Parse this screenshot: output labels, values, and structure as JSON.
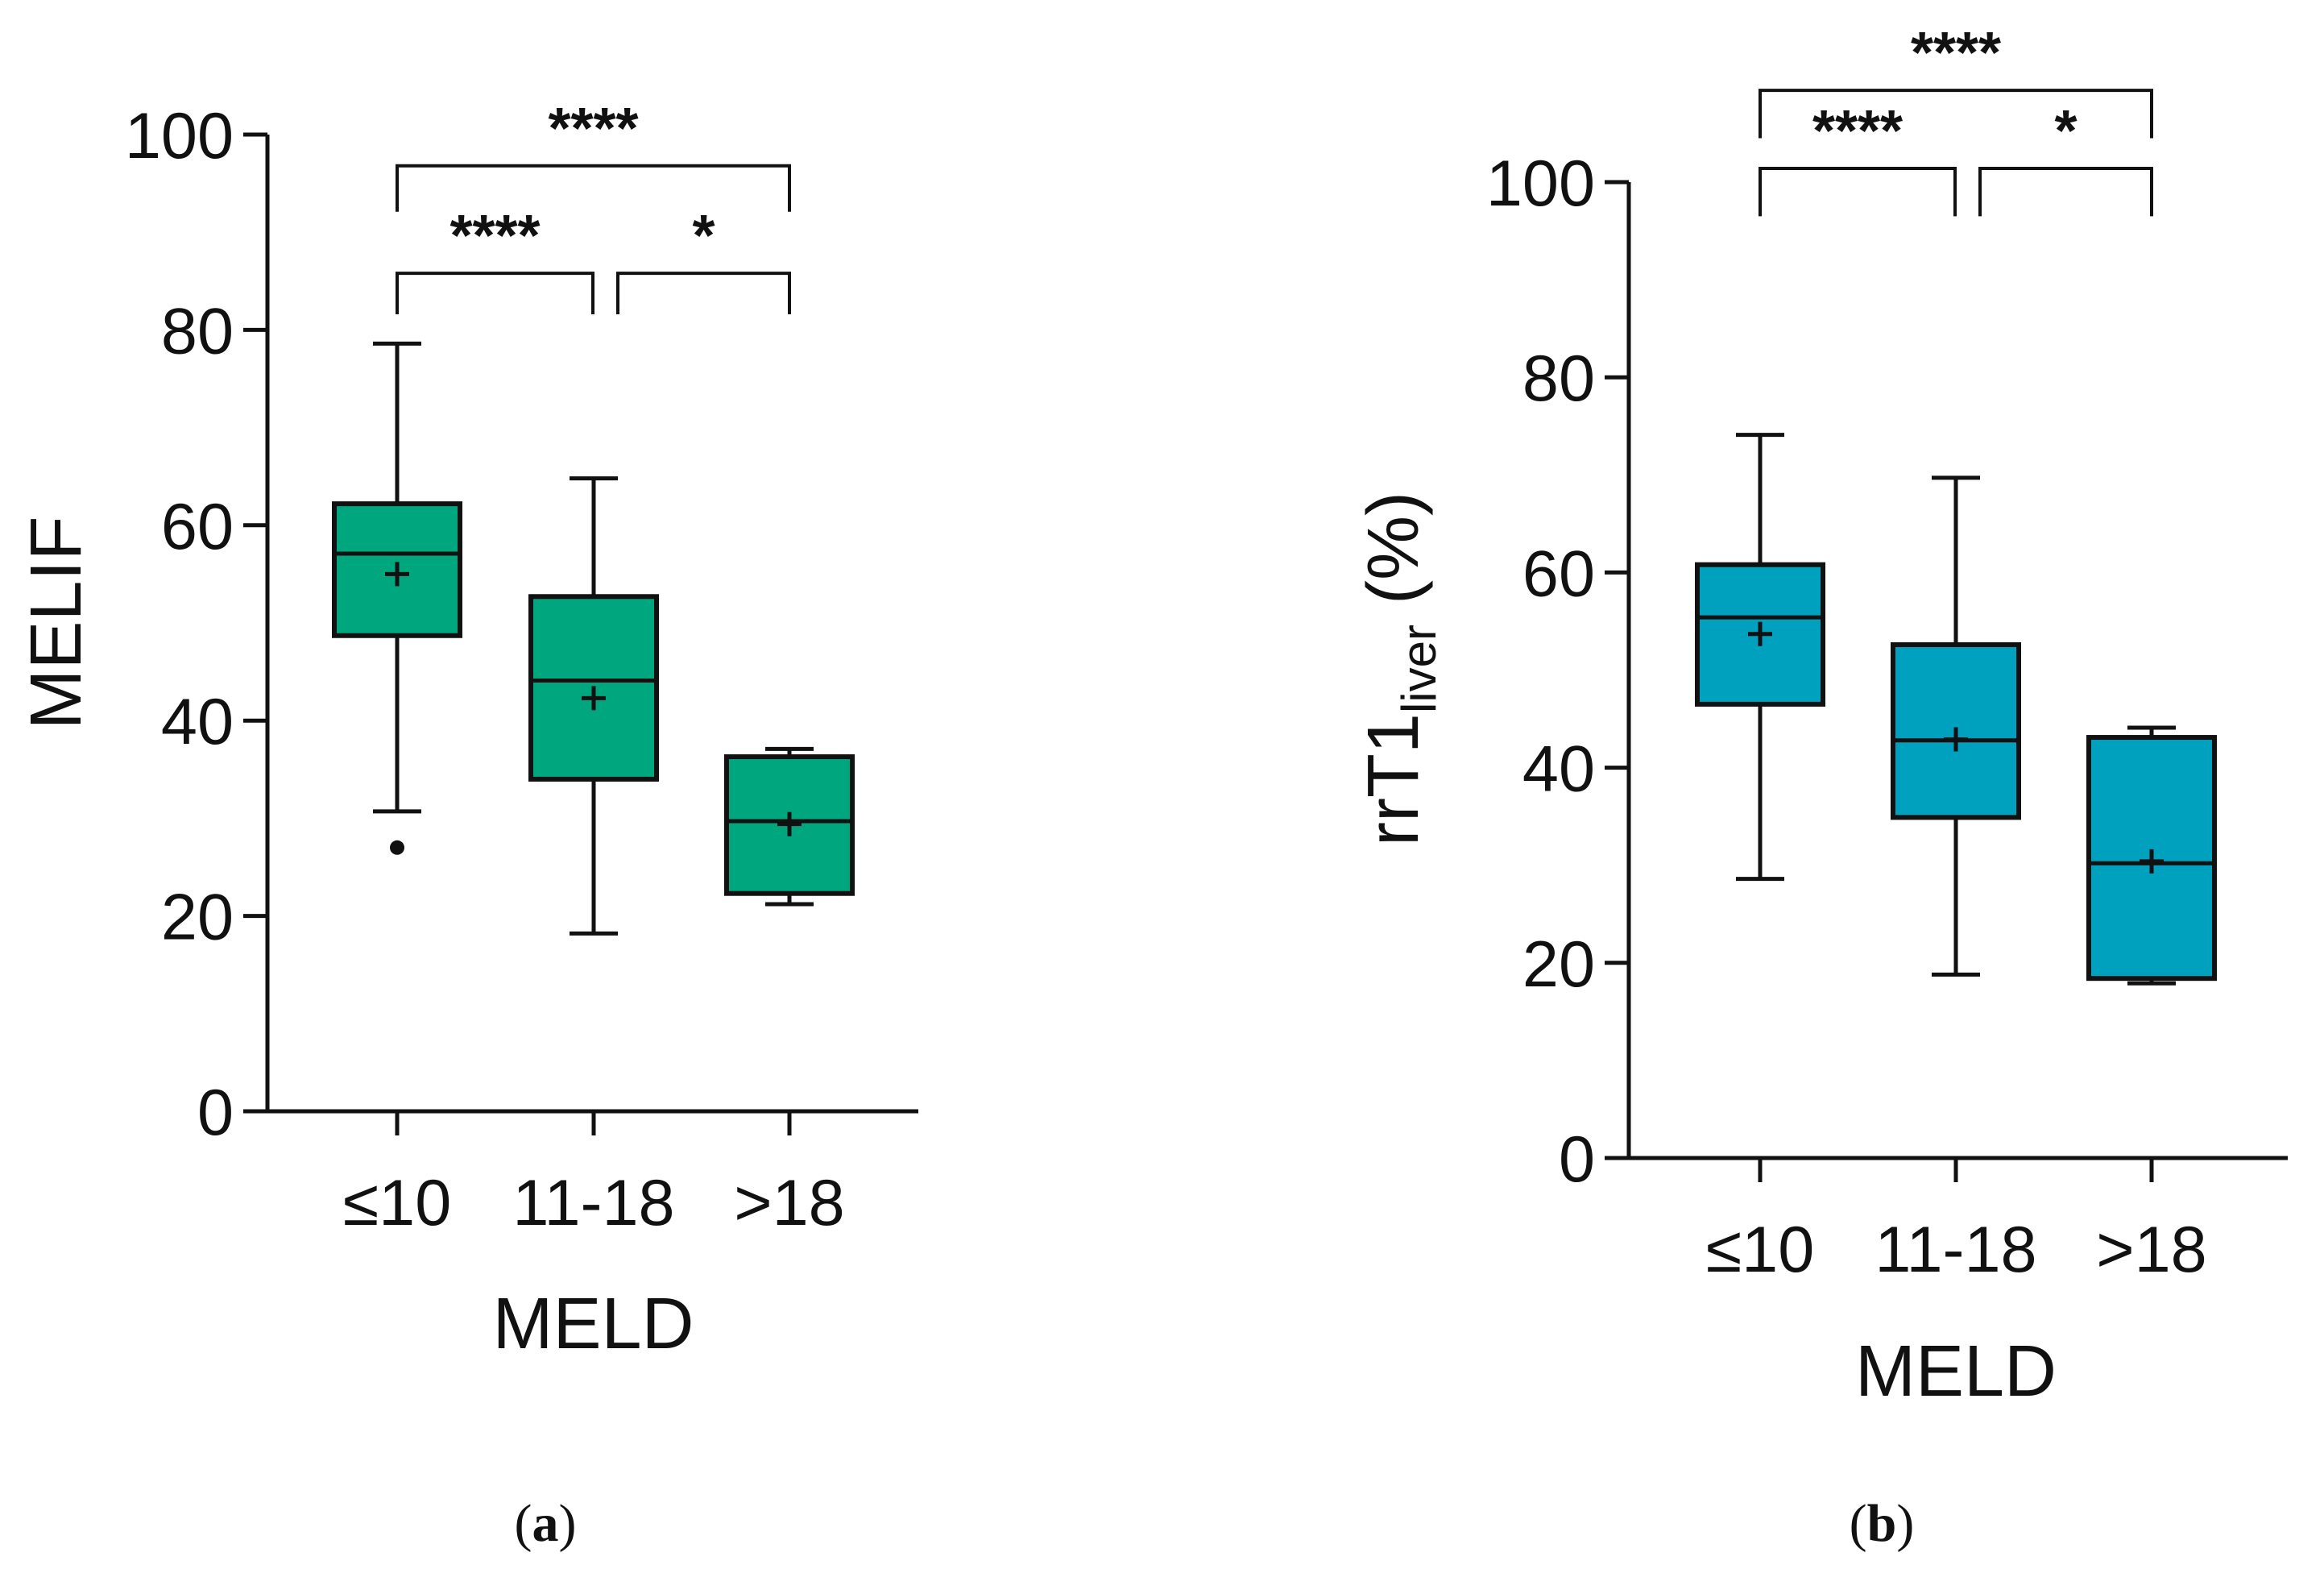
{
  "chart_data": [
    {
      "type": "boxplot",
      "panel_label": "a",
      "caption_open": "(",
      "caption_close": ")",
      "xlabel": "MELD",
      "ylabel": "MELIF",
      "ylabel_subscript": "",
      "ylabel_suffix": "",
      "ylim": [
        0,
        100
      ],
      "yticks": [
        0,
        20,
        40,
        60,
        80,
        100
      ],
      "categories": [
        "≤10",
        "11-18",
        ">18"
      ],
      "color": "#00A67E",
      "boxes": [
        {
          "category": "≤10",
          "whisker_low": 30.7,
          "q1": 48.7,
          "median": 57.1,
          "q3": 62.2,
          "whisker_high": 78.6,
          "mean": 55.0,
          "outliers": [
            27.0
          ]
        },
        {
          "category": "11-18",
          "whisker_low": 18.2,
          "q1": 34.0,
          "median": 44.1,
          "q3": 52.7,
          "whisker_high": 64.8,
          "mean": 42.3,
          "outliers": []
        },
        {
          "category": ">18",
          "whisker_low": 21.2,
          "q1": 22.3,
          "median": 29.7,
          "q3": 36.3,
          "whisker_high": 37.1,
          "mean": 29.4,
          "outliers": []
        }
      ],
      "significance": [
        {
          "from": 0,
          "to": 1,
          "y": 85.8,
          "drop": 4.2,
          "label": "****"
        },
        {
          "from": 1,
          "to": 2,
          "y": 85.8,
          "drop": 4.2,
          "label": "*"
        },
        {
          "from": 0,
          "to": 2,
          "y": 96.8,
          "drop": 4.7,
          "label": "****"
        }
      ]
    },
    {
      "type": "boxplot",
      "panel_label": "b",
      "caption_open": "(",
      "caption_close": ")",
      "xlabel": "MELD",
      "ylabel": "rrT1",
      "ylabel_subscript": "liver",
      "ylabel_suffix": " (%)",
      "ylim": [
        0,
        100
      ],
      "yticks": [
        0,
        20,
        40,
        60,
        80,
        100
      ],
      "categories": [
        "≤10",
        "11-18",
        ">18"
      ],
      "color": "#00A0BF",
      "boxes": [
        {
          "category": "≤10",
          "whisker_low": 28.6,
          "q1": 46.5,
          "median": 55.4,
          "q3": 60.8,
          "whisker_high": 74.1,
          "mean": 53.7,
          "outliers": []
        },
        {
          "category": "11-18",
          "whisker_low": 18.8,
          "q1": 34.9,
          "median": 42.8,
          "q3": 52.6,
          "whisker_high": 69.7,
          "mean": 42.9,
          "outliers": []
        },
        {
          "category": ">18",
          "whisker_low": 17.9,
          "q1": 18.4,
          "median": 30.2,
          "q3": 43.1,
          "whisker_high": 44.1,
          "mean": 30.4,
          "outliers": []
        }
      ],
      "significance": [
        {
          "from": 0,
          "to": 1,
          "y": 101.4,
          "drop": 4.9,
          "label": "****"
        },
        {
          "from": 1,
          "to": 2,
          "y": 101.4,
          "drop": 4.9,
          "label": "*"
        },
        {
          "from": 0,
          "to": 2,
          "y": 109.4,
          "drop": 4.9,
          "label": "****"
        }
      ]
    }
  ]
}
